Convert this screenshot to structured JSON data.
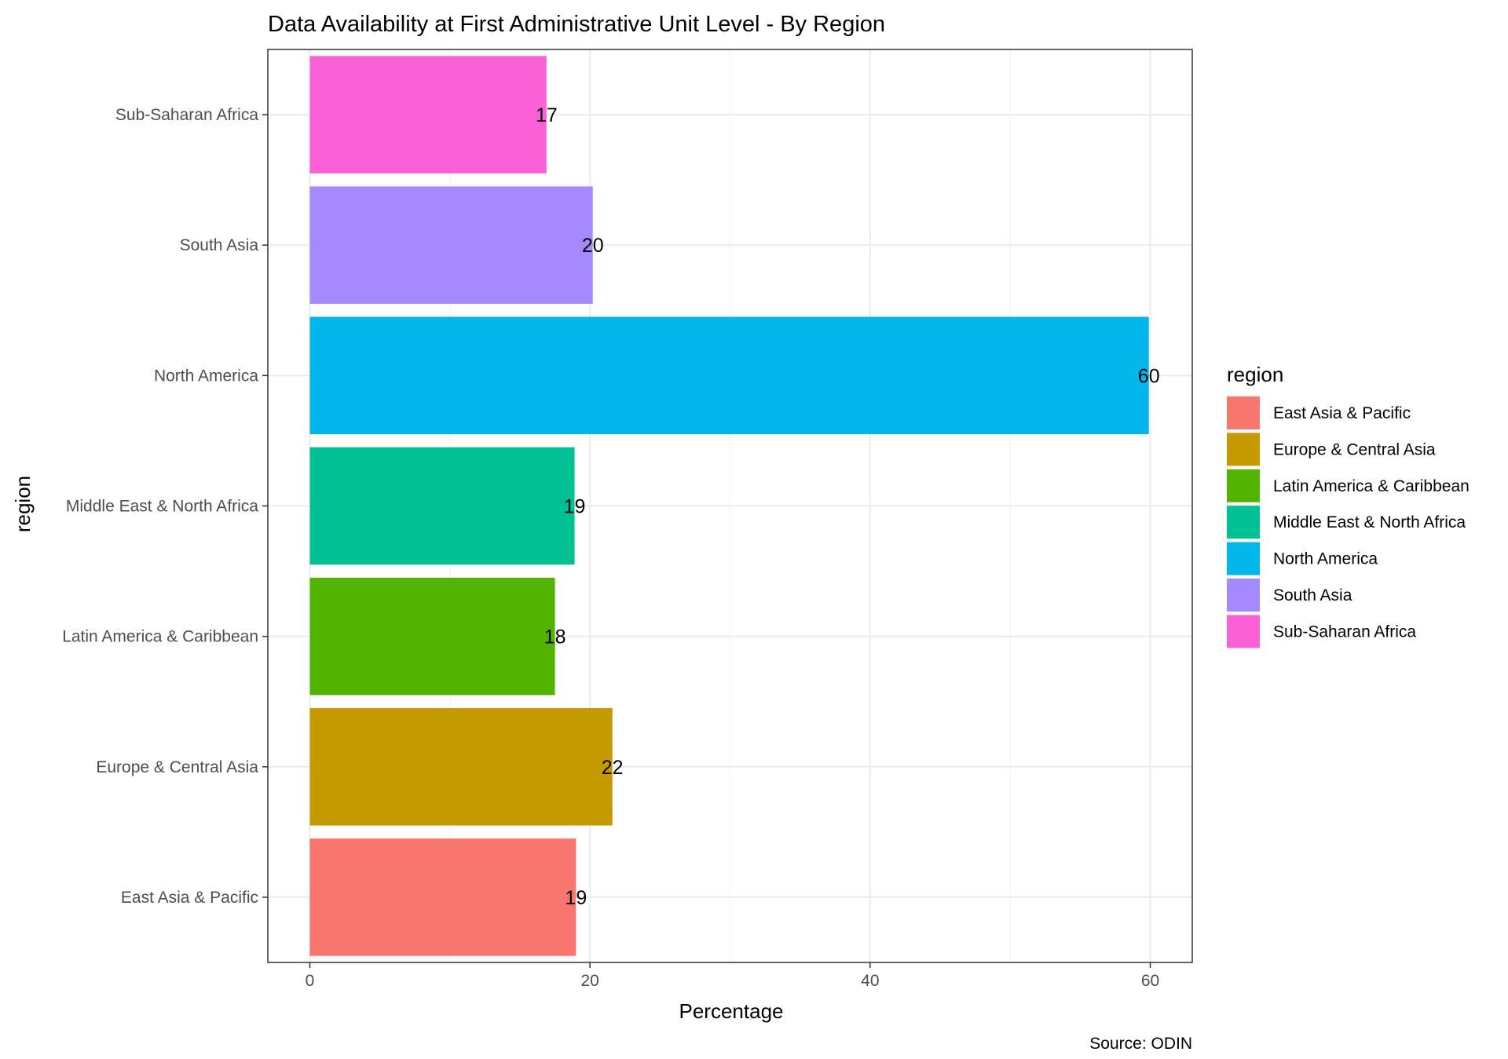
{
  "chart_data": {
    "type": "bar",
    "orientation": "horizontal",
    "title": "Data Availability at First Administrative Unit Level - By Region",
    "xlabel": "Percentage",
    "ylabel": "region",
    "caption": "Source: ODIN",
    "xlim": [
      -3,
      63
    ],
    "xticks": [
      0,
      20,
      40,
      60
    ],
    "grid": true,
    "legend": {
      "title": "region",
      "position": "right",
      "entries": [
        {
          "label": "East Asia & Pacific",
          "color": "#F8766D"
        },
        {
          "label": "Europe & Central Asia",
          "color": "#C49A00"
        },
        {
          "label": "Latin America & Caribbean",
          "color": "#53B400"
        },
        {
          "label": "Middle East & North Africa",
          "color": "#00C094"
        },
        {
          "label": "North America",
          "color": "#00B6EB"
        },
        {
          "label": "South Asia",
          "color": "#A58AFF"
        },
        {
          "label": "Sub-Saharan Africa",
          "color": "#FB61D7"
        }
      ]
    },
    "categories": [
      "East Asia & Pacific",
      "Europe & Central Asia",
      "Latin America & Caribbean",
      "Middle East & North Africa",
      "North America",
      "South Asia",
      "Sub-Saharan Africa"
    ],
    "values": [
      19,
      21.6,
      17.5,
      18.9,
      59.9,
      20.2,
      16.9
    ],
    "data_labels": [
      "19",
      "22",
      "18",
      "19",
      "60",
      "20",
      "17"
    ],
    "colors": [
      "#F8766D",
      "#C49A00",
      "#53B400",
      "#00C094",
      "#00B6EB",
      "#A58AFF",
      "#FB61D7"
    ]
  }
}
